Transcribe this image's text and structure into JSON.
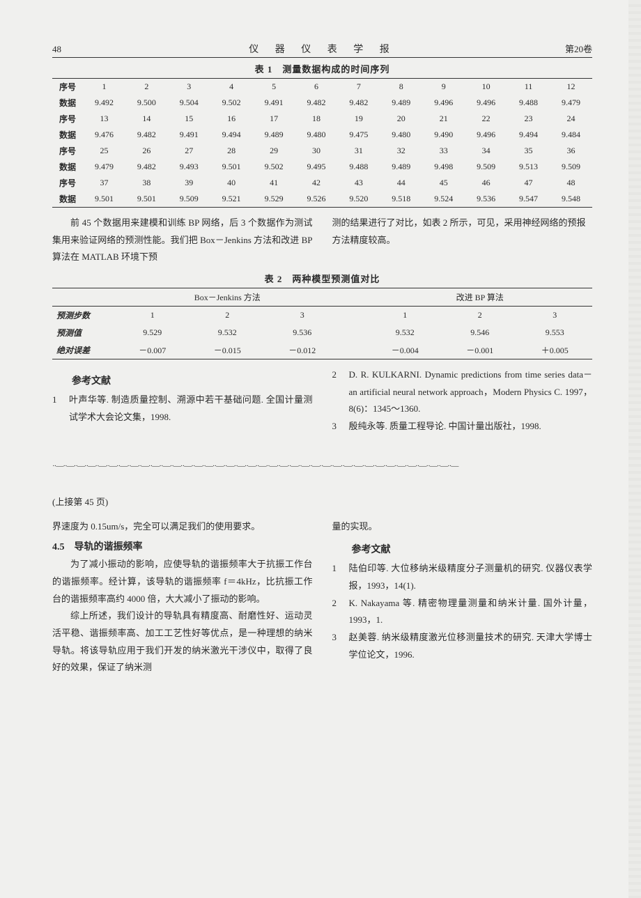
{
  "header": {
    "page_num": "48",
    "journal_title": "仪 器 仪 表 学 报",
    "volume": "第20卷"
  },
  "table1": {
    "caption": "表 1　测量数据构成的时间序列",
    "rows": [
      {
        "label": "序号",
        "cells": [
          "1",
          "2",
          "3",
          "4",
          "5",
          "6",
          "7",
          "8",
          "9",
          "10",
          "11",
          "12"
        ]
      },
      {
        "label": "数据",
        "cells": [
          "9.492",
          "9.500",
          "9.504",
          "9.502",
          "9.491",
          "9.482",
          "9.482",
          "9.489",
          "9.496",
          "9.496",
          "9.488",
          "9.479"
        ]
      },
      {
        "label": "序号",
        "cells": [
          "13",
          "14",
          "15",
          "16",
          "17",
          "18",
          "19",
          "20",
          "21",
          "22",
          "23",
          "24"
        ]
      },
      {
        "label": "数据",
        "cells": [
          "9.476",
          "9.482",
          "9.491",
          "9.494",
          "9.489",
          "9.480",
          "9.475",
          "9.480",
          "9.490",
          "9.496",
          "9.494",
          "9.484"
        ]
      },
      {
        "label": "序号",
        "cells": [
          "25",
          "26",
          "27",
          "28",
          "29",
          "30",
          "31",
          "32",
          "33",
          "34",
          "35",
          "36"
        ]
      },
      {
        "label": "数据",
        "cells": [
          "9.479",
          "9.482",
          "9.493",
          "9.501",
          "9.502",
          "9.495",
          "9.488",
          "9.489",
          "9.498",
          "9.509",
          "9.513",
          "9.509"
        ]
      },
      {
        "label": "序号",
        "cells": [
          "37",
          "38",
          "39",
          "40",
          "41",
          "42",
          "43",
          "44",
          "45",
          "46",
          "47",
          "48"
        ]
      },
      {
        "label": "数据",
        "cells": [
          "9.501",
          "9.501",
          "9.509",
          "9.521",
          "9.529",
          "9.526",
          "9.520",
          "9.518",
          "9.524",
          "9.536",
          "9.547",
          "9.548"
        ]
      }
    ]
  },
  "mid_text": {
    "left": "前 45 个数据用来建模和训练 BP 网络，后 3 个数据作为测试集用来验证网络的预测性能。我们把 Box－Jenkins 方法和改进 BP 算法在 MATLAB 环境下预",
    "right": "测的结果进行了对比，如表 2 所示，可见，采用神经网络的预报方法精度较高。"
  },
  "table2": {
    "caption": "表 2　两种模型预测值对比",
    "col_headers": {
      "m1": "Box－Jenkins 方法",
      "m2": "改进 BP 算法"
    },
    "rows": [
      {
        "label": "预测步数",
        "m1": [
          "1",
          "2",
          "3"
        ],
        "m2": [
          "1",
          "2",
          "3"
        ]
      },
      {
        "label": "预测值",
        "m1": [
          "9.529",
          "9.532",
          "9.536"
        ],
        "m2": [
          "9.532",
          "9.546",
          "9.553"
        ]
      },
      {
        "label": "绝对误差",
        "m1": [
          "－0.007",
          "－0.015",
          "－0.012"
        ],
        "m2": [
          "－0.004",
          "－0.001",
          "＋0.005"
        ]
      }
    ]
  },
  "refs_upper": {
    "heading": "参考文献",
    "items": [
      {
        "n": "1",
        "t": "叶声华等. 制造质量控制、溯源中若干基础问题. 全国计量测试学术大会论文集，1998."
      },
      {
        "n": "2",
        "t": "D. R. KULKARNI. Dynamic predictions from time series data－an artificial neural network approach，Modern Physics C. 1997，8(6)：1345～1360."
      },
      {
        "n": "3",
        "t": "殷纯永等. 质量工程导论. 中国计量出版社，1998."
      }
    ]
  },
  "ornament": "··—··—··—··—··—··—··—··—··—··—··—··—··—··—··—··—··—··—··—··—··—··—··—··—··—··—··—··—··—··—··—··—··—··—··—··—··—··—",
  "continued_label": "(上接第 45 页)",
  "lower": {
    "left": {
      "p0": "界速度为 0.15um/s，完全可以满足我们的使用要求。",
      "h45": "4.5　导轨的谐振频率",
      "p1": "为了减小振动的影响，应使导轨的谐振频率大于抗振工作台的谐振频率。经计算，该导轨的谐振频率 f＝4kHz，比抗振工作台的谐振频率高约 4000 倍，大大减小了振动的影响。",
      "p2": "综上所述，我们设计的导轨具有精度高、耐磨性好、运动灵活平稳、谐振频率高、加工工艺性好等优点，是一种理想的纳米导轨。将该导轨应用于我们开发的纳米激光干涉仪中，取得了良好的效果，保证了纳米测"
    },
    "right": {
      "p0": "量的实现。",
      "heading": "参考文献",
      "items": [
        {
          "n": "1",
          "t": "陆伯印等. 大位移纳米级精度分子测量机的研究. 仪器仪表学报，1993，14(1)."
        },
        {
          "n": "2",
          "t": "K. Nakayama 等. 精密物理量测量和纳米计量. 国外计量，1993，1."
        },
        {
          "n": "3",
          "t": "赵美蓉. 纳米级精度激光位移测量技术的研究. 天津大学博士学位论文，1996."
        }
      ]
    }
  }
}
